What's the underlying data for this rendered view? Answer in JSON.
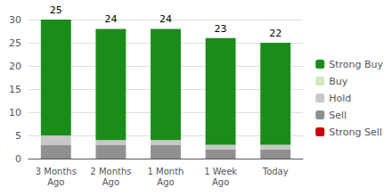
{
  "chart_data": {
    "type": "bar",
    "stacked": true,
    "categories": [
      "3 Months\nAgo",
      "2 Months\nAgo",
      "1 Month\nAgo",
      "1 Week\nAgo",
      "Today"
    ],
    "series": [
      {
        "name": "Strong Sell",
        "color": "#cc0000",
        "values": [
          0,
          0,
          0,
          0,
          0
        ]
      },
      {
        "name": "Sell",
        "color": "#909090",
        "values": [
          3,
          3,
          3,
          2,
          2
        ]
      },
      {
        "name": "Hold",
        "color": "#c8c8c8",
        "values": [
          2,
          1,
          1,
          1,
          1
        ]
      },
      {
        "name": "Buy",
        "color": "#d4e8c2",
        "values": [
          0,
          0,
          0,
          0,
          0
        ]
      },
      {
        "name": "Strong Buy",
        "color": "#1a8c1a",
        "values": [
          25,
          24,
          24,
          23,
          22
        ],
        "data_labels": true
      }
    ],
    "ylim": [
      0,
      30
    ],
    "yticks": [
      0,
      5,
      10,
      15,
      20,
      25,
      30
    ],
    "grid": true,
    "legend": "right"
  }
}
